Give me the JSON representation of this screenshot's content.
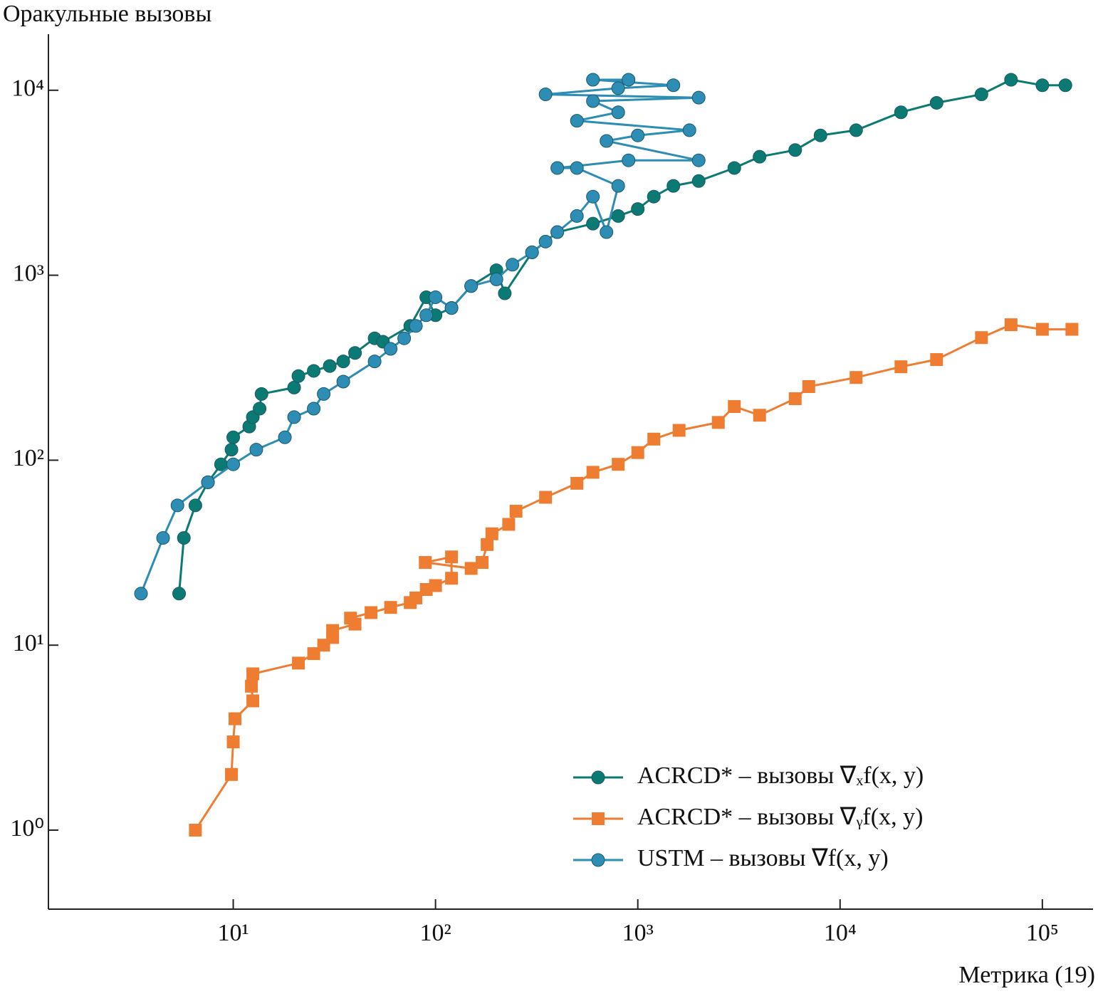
{
  "chart_data": {
    "type": "line",
    "y_label": "Оракульные вызовы",
    "x_label": "Метрика (19)",
    "log_x": true,
    "log_y": true,
    "xlim": [
      1.22,
      178000
    ],
    "ylim": [
      0.374,
      20100
    ],
    "xticks": [
      {
        "value": 10,
        "label": "10¹"
      },
      {
        "value": 100,
        "label": "10²"
      },
      {
        "value": 1000,
        "label": "10³"
      },
      {
        "value": 10000,
        "label": "10⁴"
      },
      {
        "value": 100000,
        "label": "10⁵"
      }
    ],
    "yticks": [
      {
        "value": 1,
        "label": "10⁰"
      },
      {
        "value": 10,
        "label": "10¹"
      },
      {
        "value": 100,
        "label": "10²"
      },
      {
        "value": 1000,
        "label": "10³"
      },
      {
        "value": 10000,
        "label": "10⁴"
      }
    ],
    "legend": "lower right",
    "series": [
      {
        "name": "ACRCD* – вызовы ∇ₓf(x, y)",
        "color": "#0b7a72",
        "marker": "circle",
        "x": [
          5.4,
          5.7,
          6.5,
          7.5,
          8.7,
          9.8,
          10,
          12,
          12.5,
          13.5,
          13.8,
          20,
          21,
          25,
          30,
          35,
          40,
          50,
          55,
          75,
          90,
          100,
          120,
          150,
          200,
          220,
          300,
          400,
          600,
          800,
          1000,
          1200,
          1500,
          2000,
          3000,
          4000,
          6000,
          8000,
          12000,
          20000,
          30000,
          50000,
          70000,
          100000,
          130000
        ],
        "values": [
          19,
          38,
          57,
          76,
          95,
          114,
          133,
          152,
          171,
          190,
          228,
          247,
          285,
          304,
          323,
          342,
          380,
          456,
          437,
          532,
          760,
          608,
          665,
          874,
          1064,
          798,
          1330,
          1710,
          1900,
          2090,
          2280,
          2660,
          3040,
          3230,
          3800,
          4370,
          4750,
          5700,
          6080,
          7600,
          8550,
          9500,
          11400,
          10640,
          10640
        ]
      },
      {
        "name": "ACRCD* – вызовы ∇ᵧf(x, y)",
        "color": "#ef7d31",
        "marker": "square",
        "x": [
          6.5,
          9.8,
          10,
          10.2,
          12.5,
          12.3,
          12.5,
          21,
          25,
          28,
          31,
          31,
          40,
          38,
          48,
          60,
          75,
          80,
          90,
          100,
          120,
          120,
          89,
          150,
          170,
          180,
          190,
          230,
          250,
          350,
          500,
          600,
          800,
          1000,
          1200,
          1600,
          2500,
          3000,
          4000,
          6000,
          7000,
          12000,
          20000,
          30000,
          50000,
          70000,
          100000,
          140000
        ],
        "values": [
          1,
          2,
          3,
          4,
          5,
          6,
          7,
          8,
          9,
          10,
          11,
          12,
          13,
          14,
          15,
          16,
          17,
          18,
          20,
          21,
          23,
          30,
          28,
          26,
          28,
          35,
          40,
          45,
          53,
          63,
          75,
          86,
          95,
          110,
          130,
          145,
          160,
          195,
          175,
          215,
          250,
          280,
          320,
          350,
          460,
          540,
          510,
          510
        ]
      },
      {
        "name": "USTM – вызовы ∇f(x, y)",
        "color": "#2d8db4",
        "marker": "circle",
        "x": [
          3.5,
          4.5,
          5.3,
          7.5,
          10,
          13,
          18,
          20,
          25,
          28,
          35,
          50,
          60,
          70,
          80,
          90,
          100,
          120,
          150,
          200,
          240,
          300,
          350,
          400,
          500,
          600,
          700,
          800,
          500,
          400,
          900,
          2000,
          700,
          1000,
          1800,
          500,
          800,
          600,
          2000,
          350,
          800,
          1500,
          600,
          900
        ],
        "values": [
          19,
          38,
          57,
          76,
          95,
          114,
          133,
          171,
          190,
          228,
          266,
          342,
          400,
          456,
          532,
          608,
          760,
          665,
          874,
          950,
          1140,
          1330,
          1520,
          1710,
          2090,
          2660,
          1710,
          3040,
          3800,
          3800,
          4180,
          4180,
          5320,
          5700,
          6080,
          6840,
          7600,
          8740,
          9120,
          9500,
          10260,
          10640,
          11400,
          11400
        ]
      }
    ]
  }
}
